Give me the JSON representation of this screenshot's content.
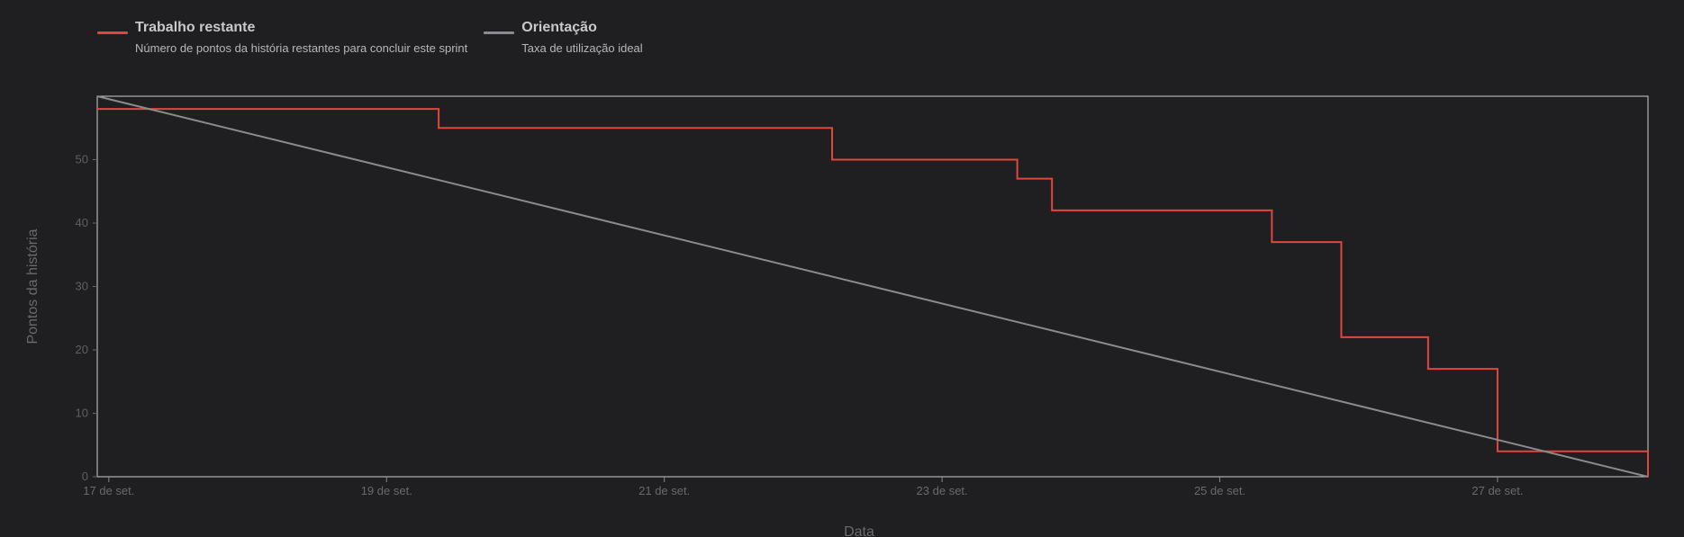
{
  "legend": {
    "items": [
      {
        "title": "Trabalho restante",
        "description": "Número de pontos da história restantes para concluir este sprint",
        "color": "#e0473c"
      },
      {
        "title": "Orientação",
        "description": "Taxa de utilização ideal",
        "color": "#8b8b8f"
      }
    ]
  },
  "chart_data": {
    "type": "line",
    "xlabel": "Data",
    "ylabel": "Pontos da história",
    "x_range": [
      "2023-09-17",
      "2023-09-28T02:00"
    ],
    "ylim": [
      0,
      60
    ],
    "x_ticks": [
      {
        "date": "2023-09-17",
        "label": "17 de set."
      },
      {
        "date": "2023-09-19",
        "label": "19 de set."
      },
      {
        "date": "2023-09-21",
        "label": "21 de set."
      },
      {
        "date": "2023-09-23",
        "label": "23 de set."
      },
      {
        "date": "2023-09-25",
        "label": "25 de set."
      },
      {
        "date": "2023-09-27",
        "label": "27 de set."
      }
    ],
    "y_ticks": [
      0,
      10,
      20,
      30,
      40,
      50
    ],
    "grid": false,
    "series": [
      {
        "name": "Trabalho restante",
        "color": "#e0473c",
        "step": true,
        "points": [
          {
            "x": "2023-09-16T22:00",
            "y": 58
          },
          {
            "x": "2023-09-19T09:00",
            "y": 55
          },
          {
            "x": "2023-09-22T05:00",
            "y": 50
          },
          {
            "x": "2023-09-23T13:00",
            "y": 47
          },
          {
            "x": "2023-09-23T19:00",
            "y": 42
          },
          {
            "x": "2023-09-25T09:00",
            "y": 37
          },
          {
            "x": "2023-09-25T21:00",
            "y": 22
          },
          {
            "x": "2023-09-26T12:00",
            "y": 17
          },
          {
            "x": "2023-09-27T00:00",
            "y": 4
          },
          {
            "x": "2023-09-28T02:00",
            "y": 0
          }
        ]
      },
      {
        "name": "Orientação",
        "color": "#8b8b8f",
        "step": false,
        "points": [
          {
            "x": "2023-09-16T22:00",
            "y": 60
          },
          {
            "x": "2023-09-28T02:00",
            "y": 0
          }
        ]
      }
    ]
  }
}
